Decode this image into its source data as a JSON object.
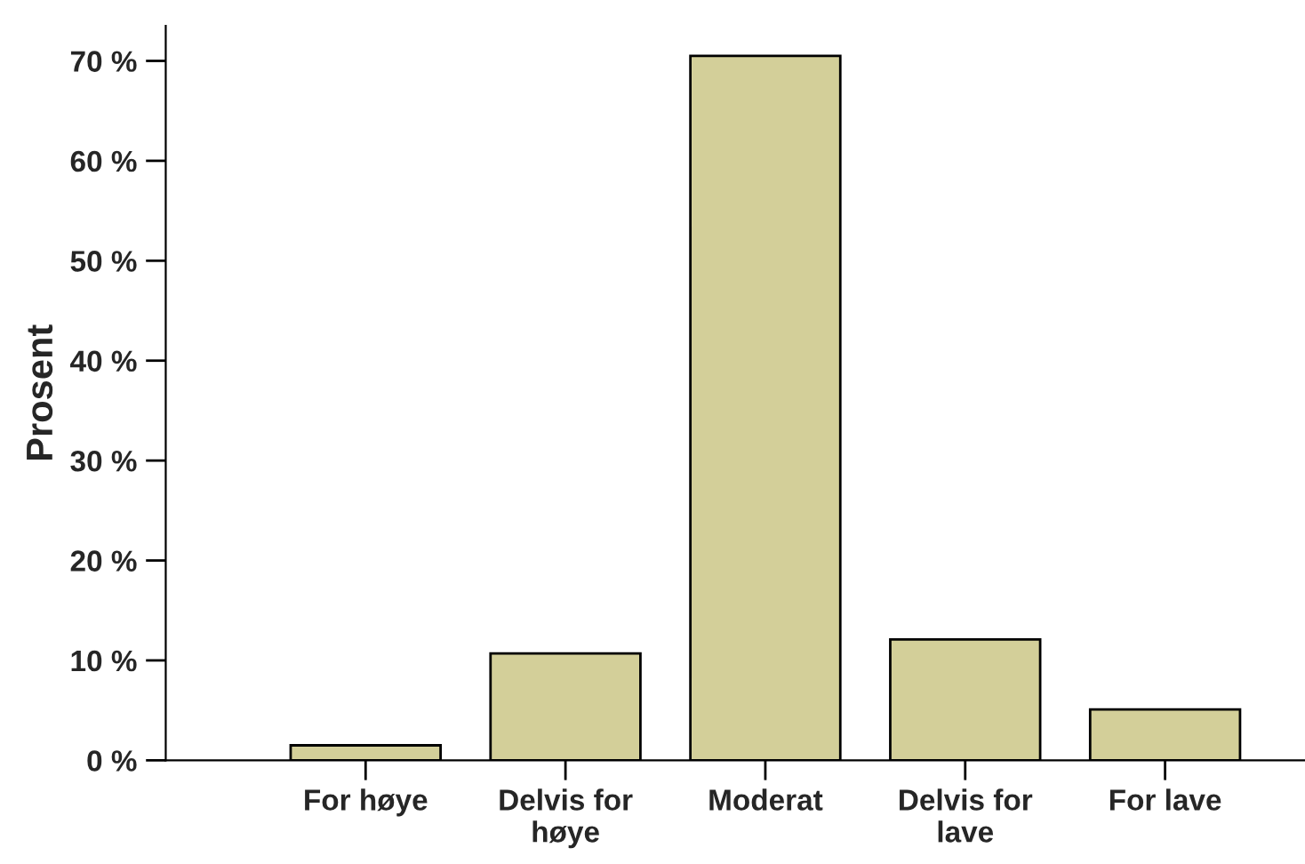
{
  "chart_data": {
    "type": "bar",
    "ylabel": "Prosent",
    "categories": [
      "For høye",
      "Delvis for\nhøye",
      "Moderat",
      "Delvis for\nlave",
      "For lave"
    ],
    "values": [
      1.5,
      10.7,
      70.5,
      12.1,
      5.1
    ],
    "color": "#d3cf99",
    "ylim": [
      0,
      73.5
    ],
    "yticks": [
      {
        "value": 0,
        "label": "0 %"
      },
      {
        "value": 10,
        "label": "10 %"
      },
      {
        "value": 20,
        "label": "20 %"
      },
      {
        "value": 30,
        "label": "30 %"
      },
      {
        "value": 40,
        "label": "40 %"
      },
      {
        "value": 50,
        "label": "50 %"
      },
      {
        "value": 60,
        "label": "60 %"
      },
      {
        "value": 70,
        "label": "70 %"
      }
    ],
    "grid": false
  }
}
